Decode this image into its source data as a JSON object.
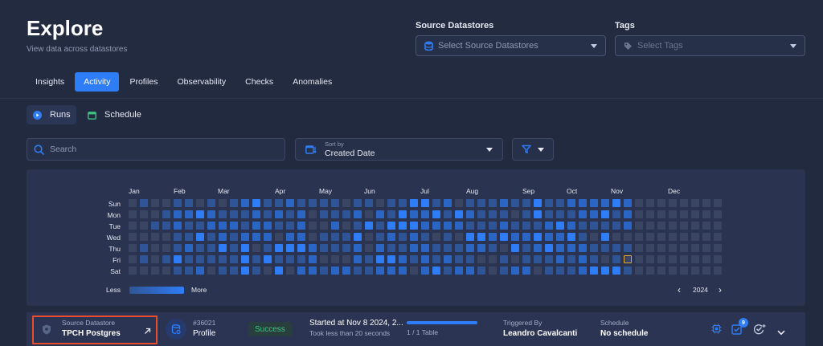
{
  "page": {
    "title": "Explore",
    "subtitle": "View data across datastores"
  },
  "filters": {
    "source_label": "Source Datastores",
    "source_placeholder": "Select Source Datastores",
    "tags_label": "Tags",
    "tags_placeholder": "Select Tags"
  },
  "tabs": [
    {
      "label": "Insights",
      "active": false
    },
    {
      "label": "Activity",
      "active": true
    },
    {
      "label": "Profiles",
      "active": false
    },
    {
      "label": "Observability",
      "active": false
    },
    {
      "label": "Checks",
      "active": false
    },
    {
      "label": "Anomalies",
      "active": false
    }
  ],
  "subtabs": {
    "runs": "Runs",
    "schedule": "Schedule"
  },
  "toolbar": {
    "search_placeholder": "Search",
    "sort_caption": "Sort by",
    "sort_value": "Created Date"
  },
  "heatmap": {
    "months": [
      "Jan",
      "Feb",
      "Mar",
      "Apr",
      "May",
      "Jun",
      "Jul",
      "Aug",
      "Sep",
      "Oct",
      "Nov",
      "Dec"
    ],
    "days": [
      "Sun",
      "Mon",
      "Tue",
      "Wed",
      "Thu",
      "Fri",
      "Sat"
    ],
    "legend_less": "Less",
    "legend_more": "More",
    "year": "2024",
    "prev": "‹",
    "next": "›",
    "colors": {
      "level0": "#3a4563",
      "level1": "#2f5596",
      "level2": "#2c66c4",
      "level3": "#2f7df6",
      "highlight": "#e0a82e"
    }
  },
  "run": {
    "source_caption": "Source Datastore",
    "source_name": "TPCH Postgres",
    "run_id": "#36021",
    "run_type": "Profile",
    "status": "Success",
    "started": "Started at Nov 8 2024, 2...",
    "duration": "Took less than 20 seconds",
    "progress_text": "1 / 1 Table",
    "progress": 1.0,
    "triggered_caption": "Triggered By",
    "triggered_by": "Leandro Cavalcanti",
    "schedule_caption": "Schedule",
    "schedule_value": "No schedule",
    "checks_count": "9"
  }
}
